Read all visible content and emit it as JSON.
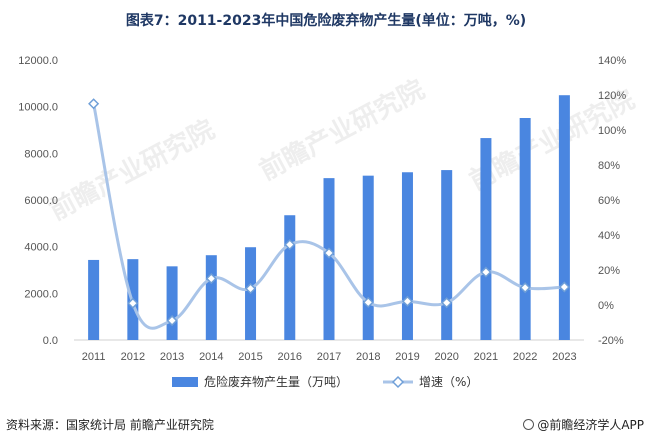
{
  "title": "图表7：2011-2023年中国危险废弃物产生量(单位：万吨，%)",
  "footer": {
    "source": "资料来源：国家统计局 前瞻产业研究院",
    "brand": "@前瞻经济学人APP"
  },
  "watermark": "前瞻产业研究院",
  "chart_data": {
    "type": "bar",
    "title": "图表7：2011-2023年中国危险废弃物产生量(单位：万吨，%)",
    "categories": [
      "2011",
      "2012",
      "2013",
      "2014",
      "2015",
      "2016",
      "2017",
      "2018",
      "2019",
      "2020",
      "2021",
      "2022",
      "2023"
    ],
    "series": [
      {
        "name": "危险废弃物产生量（万吨）",
        "type": "bar",
        "axis": "left",
        "color": "#4a86e0",
        "values": [
          3431,
          3465,
          3157,
          3634,
          3976,
          5347,
          6937,
          7043,
          7189,
          7282,
          8654,
          9514,
          10491
        ]
      },
      {
        "name": "增速（%）",
        "type": "line",
        "axis": "right",
        "color": "#a9c4e8",
        "values": [
          115,
          1.0,
          -8.9,
          15.1,
          9.4,
          34.5,
          29.7,
          1.5,
          2.1,
          1.3,
          18.8,
          9.9,
          10.3
        ]
      }
    ],
    "ylim_left": [
      0,
      12000
    ],
    "yticks_left": [
      "0.0",
      "2000.0",
      "4000.0",
      "6000.0",
      "8000.0",
      "10000.0",
      "12000.0"
    ],
    "ylim_right": [
      -20,
      140
    ],
    "yticks_right": [
      "-20%",
      "0%",
      "20%",
      "40%",
      "60%",
      "80%",
      "100%",
      "120%",
      "140%"
    ],
    "legend_position": "bottom",
    "grid": false
  }
}
